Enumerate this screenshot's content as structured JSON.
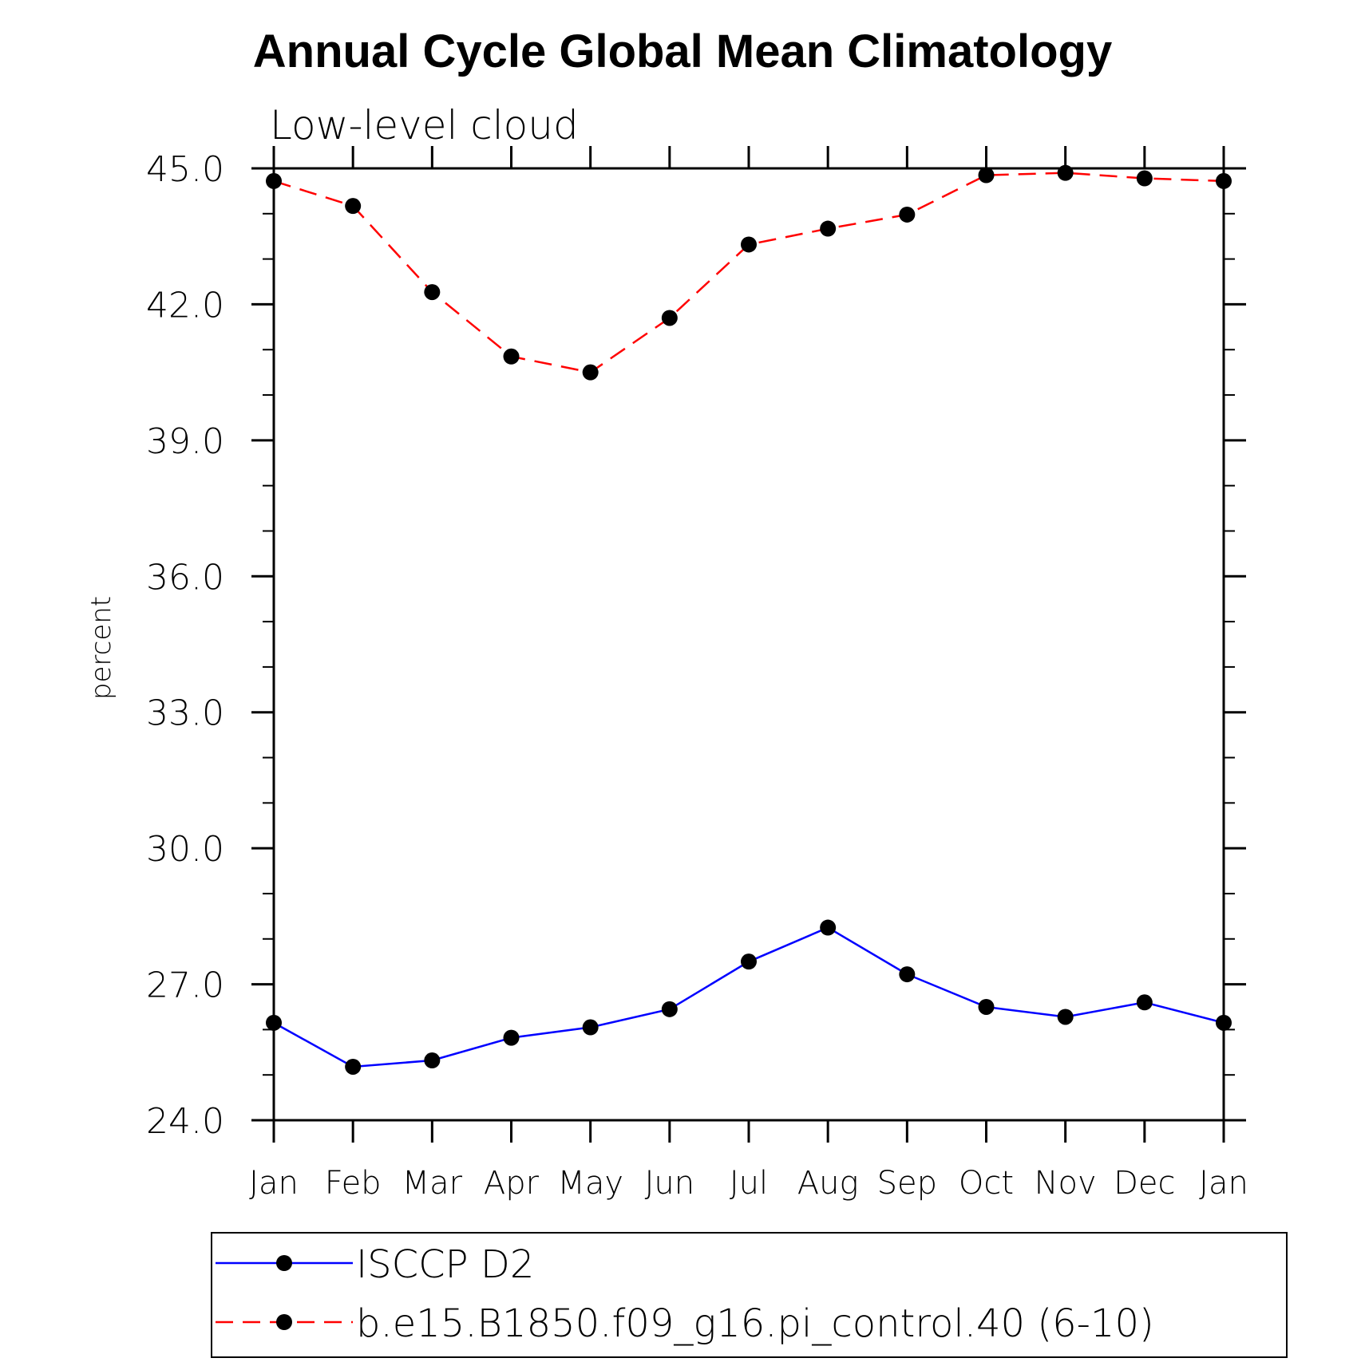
{
  "chart_data": {
    "type": "line",
    "title": "Annual Cycle Global Mean Climatology",
    "subtitle": "Low-level cloud",
    "xlabel": "",
    "ylabel": "percent",
    "ylim": [
      24.0,
      45.0
    ],
    "y_major_ticks": [
      24.0,
      27.0,
      30.0,
      33.0,
      36.0,
      39.0,
      42.0,
      45.0
    ],
    "y_tick_labels": [
      "24.0",
      "27.0",
      "30.0",
      "33.0",
      "36.0",
      "39.0",
      "42.0",
      "45.0"
    ],
    "y_minor_step": 1.0,
    "categories": [
      "Jan",
      "Feb",
      "Mar",
      "Apr",
      "May",
      "Jun",
      "Jul",
      "Aug",
      "Sep",
      "Oct",
      "Nov",
      "Dec",
      "Jan"
    ],
    "grid": false,
    "legend_position": "bottom",
    "series": [
      {
        "name": "ISCCP D2",
        "color": "#0000ff",
        "line_style": "solid",
        "marker": "filled-circle",
        "values": [
          26.15,
          25.18,
          25.32,
          25.82,
          26.05,
          26.45,
          27.5,
          28.25,
          27.22,
          26.5,
          26.28,
          26.6,
          26.15
        ]
      },
      {
        "name": "b.e15.B1850.f09_g16.pi_control.40 (6-10)",
        "color": "#ff0000",
        "line_style": "dashed",
        "marker": "filled-circle",
        "values": [
          44.72,
          44.17,
          42.27,
          40.85,
          40.5,
          41.7,
          43.32,
          43.67,
          43.98,
          44.85,
          44.9,
          44.78,
          44.72
        ]
      }
    ]
  }
}
